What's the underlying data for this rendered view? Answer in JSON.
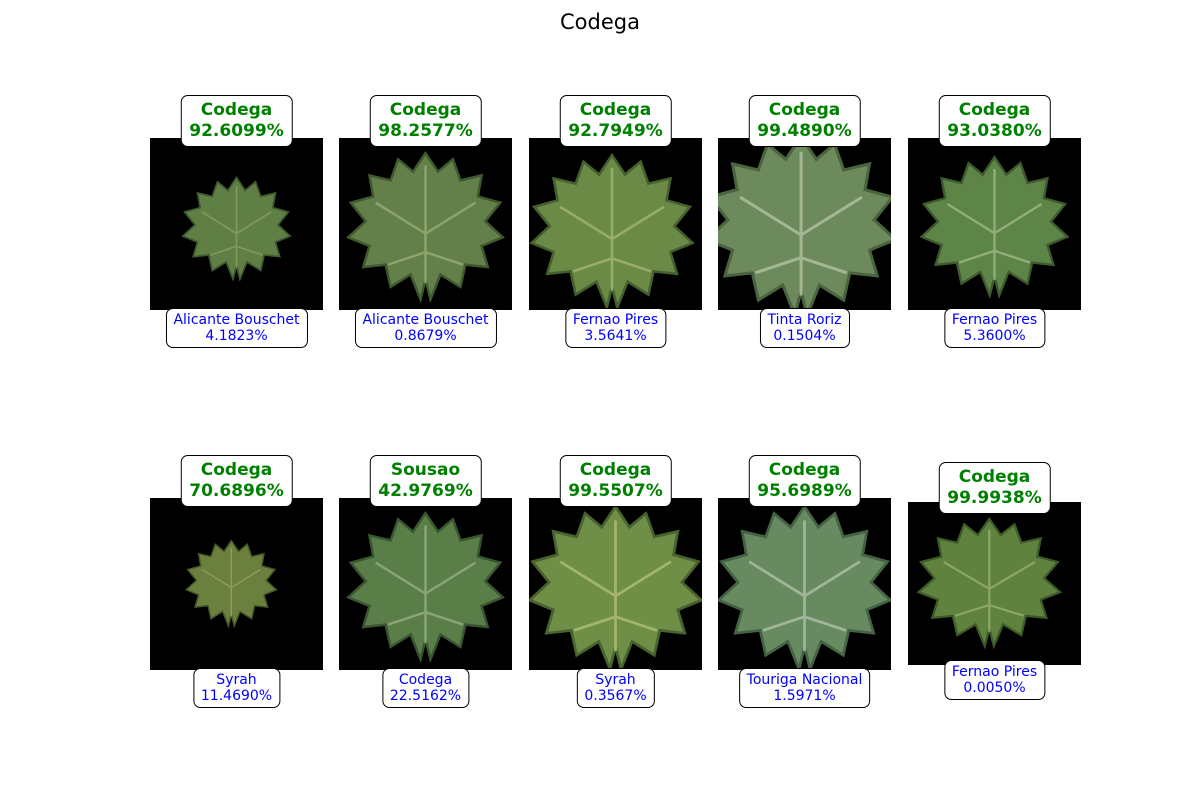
{
  "figure": {
    "title": "Codega"
  },
  "colors": {
    "top_label_text": "#008000",
    "bottom_label_text": "#0000ff",
    "photo_background": "#000000",
    "leaf_fill": "#5f7f45"
  },
  "tiles": [
    {
      "image": "grape-leaf-photo",
      "prediction": {
        "label": "Codega",
        "confidence": "92.6099%"
      },
      "secondary": {
        "label": "Alicante Bouschet",
        "confidence": "4.1823%"
      }
    },
    {
      "image": "grape-leaf-photo",
      "prediction": {
        "label": "Codega",
        "confidence": "98.2577%"
      },
      "secondary": {
        "label": "Alicante Bouschet",
        "confidence": "0.8679%"
      }
    },
    {
      "image": "grape-leaf-photo",
      "prediction": {
        "label": "Codega",
        "confidence": "92.7949%"
      },
      "secondary": {
        "label": "Fernao Pires",
        "confidence": "3.5641%"
      }
    },
    {
      "image": "grape-leaf-photo",
      "prediction": {
        "label": "Codega",
        "confidence": "99.4890%"
      },
      "secondary": {
        "label": "Tinta Roriz",
        "confidence": "0.1504%"
      }
    },
    {
      "image": "grape-leaf-photo",
      "prediction": {
        "label": "Codega",
        "confidence": "93.0380%"
      },
      "secondary": {
        "label": "Fernao Pires",
        "confidence": "5.3600%"
      }
    },
    {
      "image": "grape-leaf-photo",
      "prediction": {
        "label": "Codega",
        "confidence": "70.6896%"
      },
      "secondary": {
        "label": "Syrah",
        "confidence": "11.4690%"
      }
    },
    {
      "image": "grape-leaf-photo",
      "prediction": {
        "label": "Sousao",
        "confidence": "42.9769%"
      },
      "secondary": {
        "label": "Codega",
        "confidence": "22.5162%"
      }
    },
    {
      "image": "grape-leaf-photo",
      "prediction": {
        "label": "Codega",
        "confidence": "99.5507%"
      },
      "secondary": {
        "label": "Syrah",
        "confidence": "0.3567%"
      }
    },
    {
      "image": "grape-leaf-photo",
      "prediction": {
        "label": "Codega",
        "confidence": "95.6989%"
      },
      "secondary": {
        "label": "Touriga Nacional",
        "confidence": "1.5971%"
      }
    },
    {
      "image": "grape-leaf-photo",
      "prediction": {
        "label": "Codega",
        "confidence": "99.9938%"
      },
      "secondary": {
        "label": "Fernao Pires",
        "confidence": "0.0050%"
      }
    }
  ]
}
